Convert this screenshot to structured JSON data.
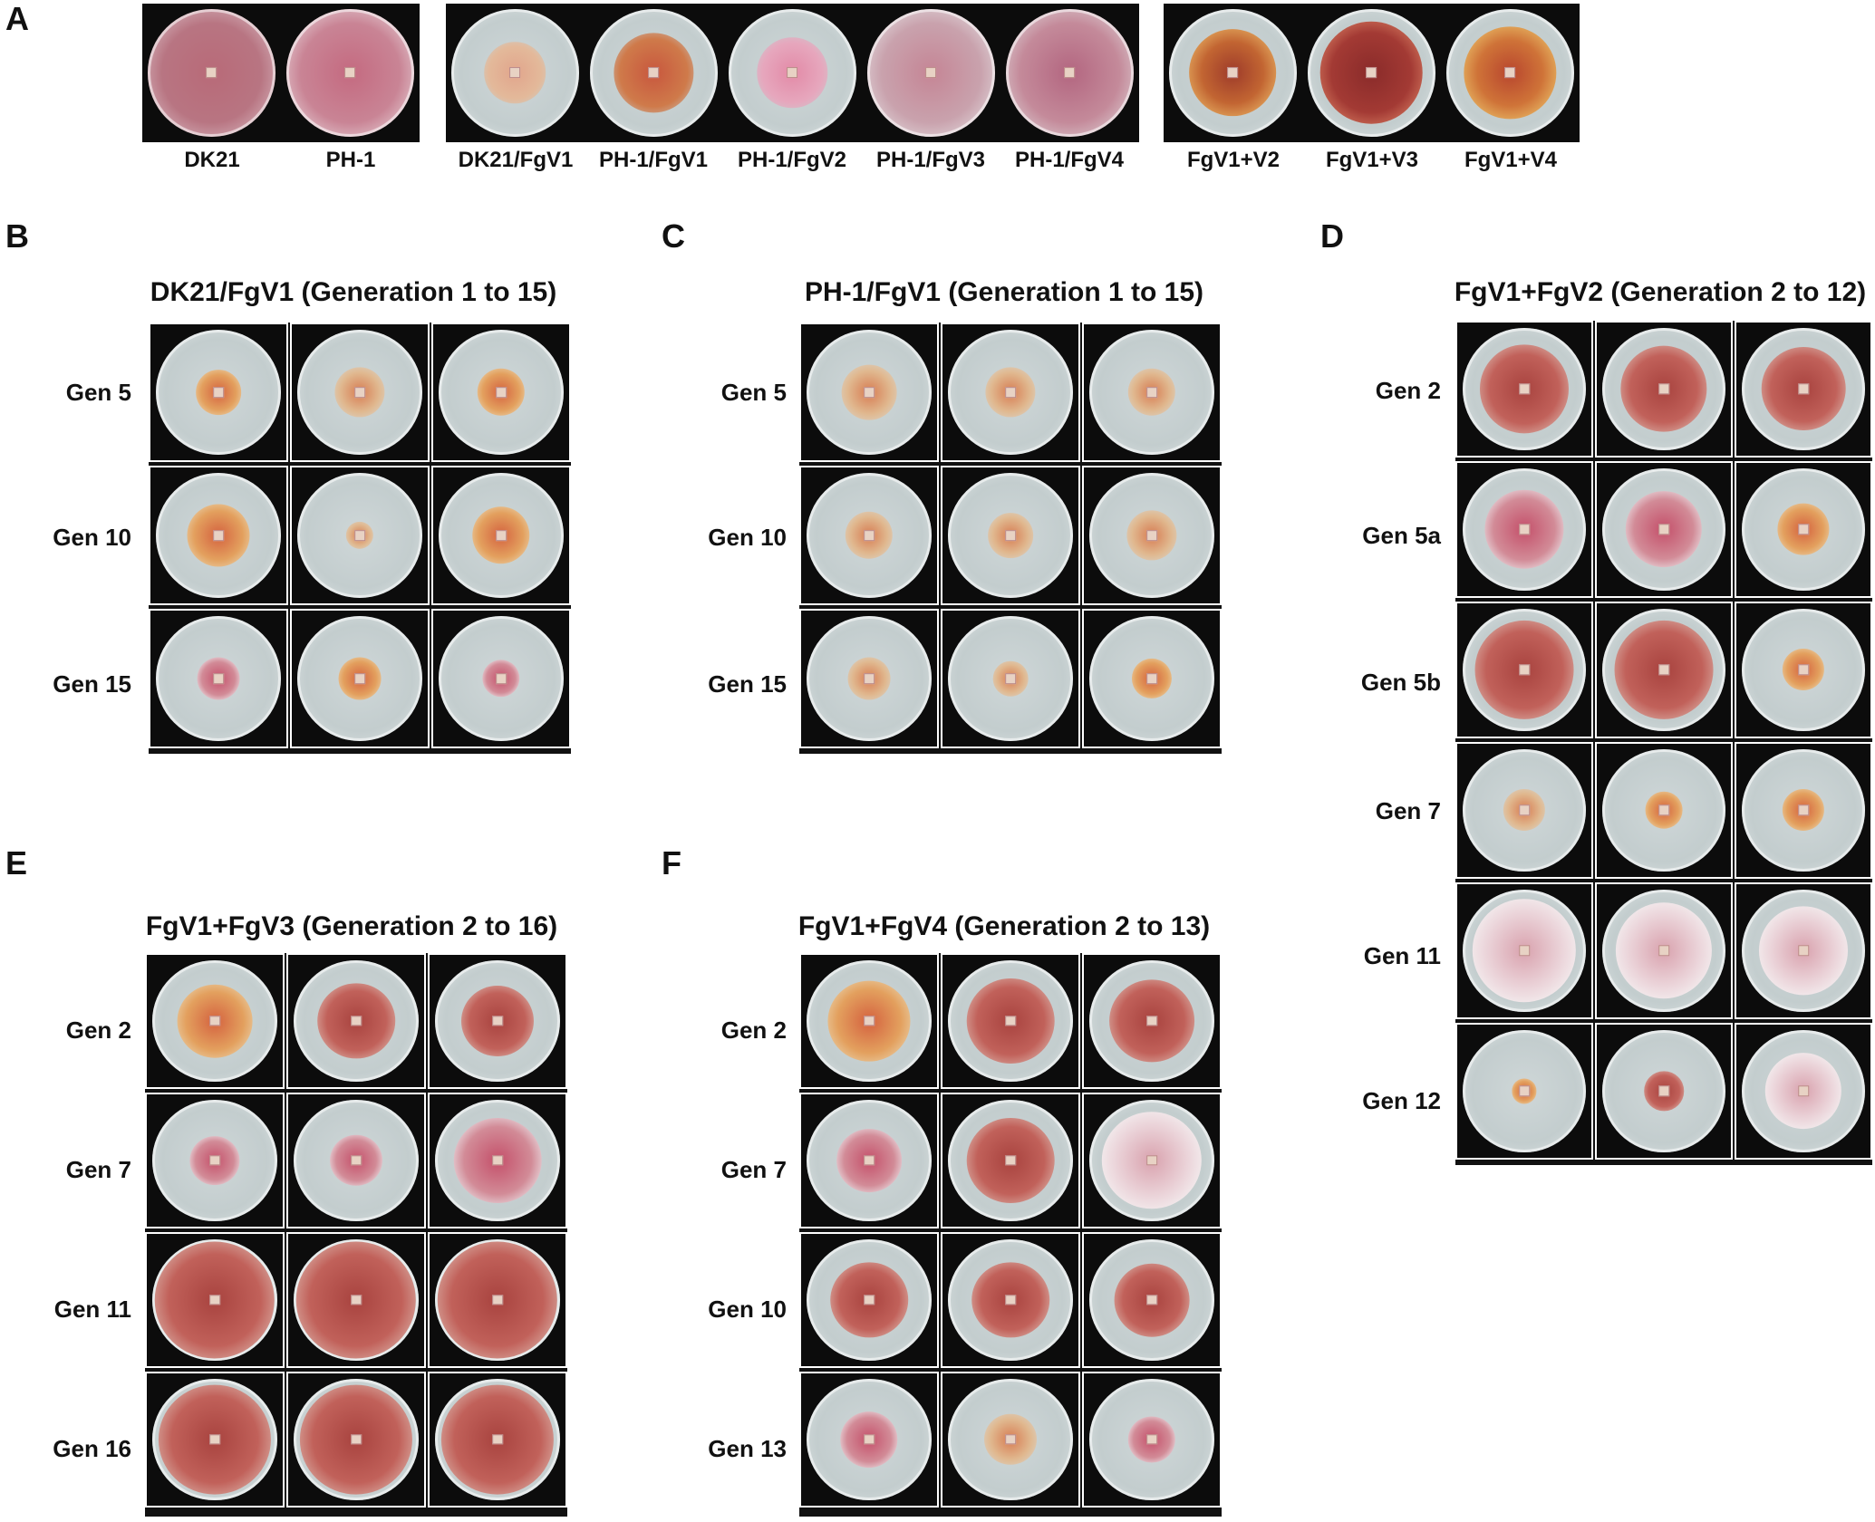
{
  "panel_a": {
    "letter": "A",
    "captions": [
      "DK21",
      "PH-1",
      "DK21/FgV1",
      "PH-1/FgV1",
      "PH-1/FgV2",
      "PH-1/FgV3",
      "PH-1/FgV4",
      "FgV1+V2",
      "FgV1+V3",
      "FgV1+V4"
    ]
  },
  "panel_b": {
    "letter": "B",
    "title": "DK21/FgV1 (Generation 1 to 15)",
    "rows": [
      "Gen 5",
      "Gen 10",
      "Gen 15"
    ]
  },
  "panel_c": {
    "letter": "C",
    "title": "PH-1/FgV1 (Generation 1 to 15)",
    "rows": [
      "Gen 5",
      "Gen 10",
      "Gen 15"
    ]
  },
  "panel_d": {
    "letter": "D",
    "title": "FgV1+FgV2 (Generation 2 to 12)",
    "rows": [
      "Gen 2",
      "Gen 5a",
      "Gen 5b",
      "Gen 7",
      "Gen 11",
      "Gen 12"
    ]
  },
  "panel_e": {
    "letter": "E",
    "title": "FgV1+FgV3 (Generation 2 to 16)",
    "rows": [
      "Gen 2",
      "Gen 7",
      "Gen 11",
      "Gen 16"
    ]
  },
  "panel_f": {
    "letter": "F",
    "title": "FgV1+FgV4 (Generation 2 to 13)",
    "rows": [
      "Gen 2",
      "Gen 7",
      "Gen 10",
      "Gen 13"
    ]
  },
  "colors": {
    "background": "#ffffff",
    "photo_background": "#0c0c0c",
    "agar": "#c6cfd0",
    "colony_red": "#b84a48",
    "colony_orange": "#d98a3c",
    "colony_white": "#e9d3d6"
  }
}
